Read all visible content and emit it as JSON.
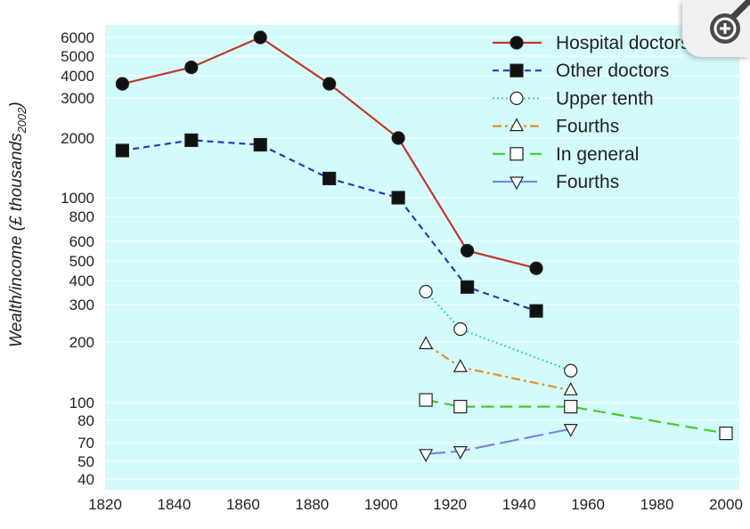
{
  "zoom_button": {
    "icon": "zoom-in-icon"
  },
  "chart_data": {
    "type": "line",
    "title": "",
    "xlabel": "",
    "ylabel": "Wealth/income (£ thousands",
    "ylabel_sub": "2002",
    "ylabel_close": ")",
    "xlim": [
      1820,
      2000
    ],
    "x_ticks": [
      "1820",
      "1840",
      "1860",
      "1880",
      "1900",
      "1920",
      "1940",
      "1960",
      "1980",
      "2000"
    ],
    "y_ticks": [
      "6000",
      "5000",
      "4000",
      "3000",
      "2000",
      "1000",
      "800",
      "600",
      "500",
      "400",
      "300",
      "200",
      "100",
      "80",
      "70",
      "50",
      "40"
    ],
    "legend_placement": "top-right",
    "series": [
      {
        "name": "Hospital doctors",
        "color": "#c0392b",
        "dash": "solid",
        "marker": "filled-circle",
        "x": [
          1825,
          1845,
          1865,
          1885,
          1905,
          1925,
          1945
        ],
        "y": [
          3600,
          4400,
          6000,
          3600,
          2000,
          550,
          460
        ]
      },
      {
        "name": "Other doctors",
        "color": "#1f3fbf",
        "dash": "dashed",
        "marker": "filled-square",
        "x": [
          1825,
          1845,
          1865,
          1885,
          1905,
          1925,
          1945
        ],
        "y": [
          1730,
          1950,
          1850,
          1250,
          1000,
          370,
          280
        ]
      },
      {
        "name": "Upper tenth",
        "color": "#3fd9b8",
        "dash": "dotted",
        "marker": "open-circle",
        "x": [
          1913,
          1923,
          1955
        ],
        "y": [
          350,
          230,
          144
        ]
      },
      {
        "name": "Fourths",
        "color": "#e0902a",
        "dash": "dashdot",
        "marker": "open-triangle-up",
        "x": [
          1913,
          1923,
          1955
        ],
        "y": [
          195,
          150,
          115
        ]
      },
      {
        "name": "In general",
        "color": "#44cc33",
        "dash": "longdash",
        "marker": "open-square",
        "x": [
          1913,
          1923,
          1955,
          2000
        ],
        "y": [
          103,
          95,
          95,
          74
        ]
      },
      {
        "name": "Fourths",
        "color": "#7a86e0",
        "dash": "longdash2",
        "marker": "open-triangle-down",
        "x": [
          1913,
          1923,
          1955
        ],
        "y": [
          57,
          60,
          76
        ]
      }
    ]
  }
}
